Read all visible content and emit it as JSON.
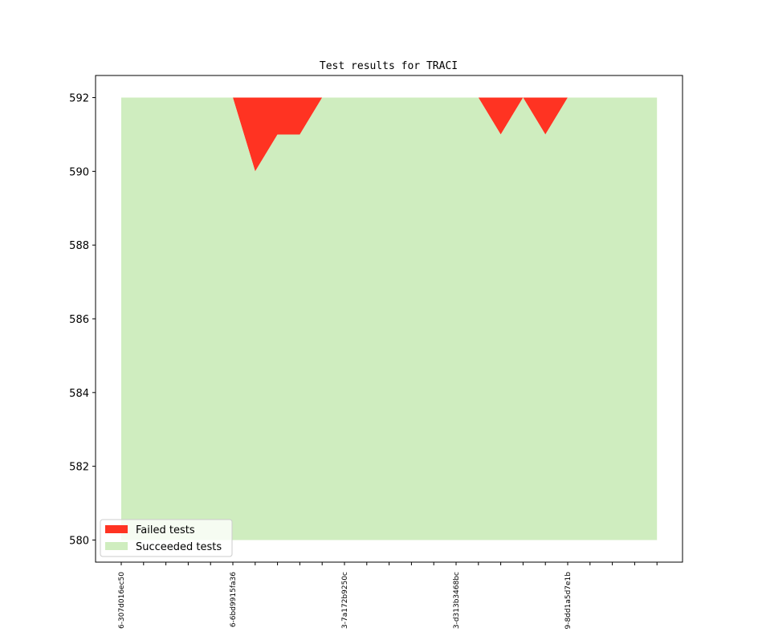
{
  "chart_data": {
    "type": "area",
    "title": "Test results for TRACI",
    "xlabel": "",
    "ylabel": "",
    "ylim": [
      579.4,
      592.6
    ],
    "yticks": [
      580,
      582,
      584,
      586,
      588,
      590,
      592
    ],
    "x_count": 25,
    "x_tick_labels": [
      {
        "index": 0,
        "label": "6-307d016ec50"
      },
      {
        "index": 5,
        "label": "6-6bd9915fa36"
      },
      {
        "index": 10,
        "label": "3-7a172b9250c"
      },
      {
        "index": 15,
        "label": "3-d313b3468bc"
      },
      {
        "index": 20,
        "label": "9-8dd1a5d7e1b"
      }
    ],
    "baseline": 580,
    "series": [
      {
        "name": "Failed tests",
        "color": "#ff3322",
        "values": [
          592,
          592,
          592,
          592,
          592,
          592,
          590,
          591,
          591,
          592,
          592,
          592,
          592,
          592,
          592,
          592,
          592,
          591,
          592,
          591,
          592,
          592,
          592,
          592,
          592
        ]
      },
      {
        "name": "Succeeded tests",
        "color": "#cfedbf",
        "values": [
          592,
          592,
          592,
          592,
          592,
          592,
          590,
          591,
          591,
          592,
          592,
          592,
          592,
          592,
          592,
          592,
          592,
          591,
          592,
          591,
          592,
          592,
          592,
          592,
          592
        ]
      }
    ],
    "total": 592,
    "legend": "lower-left",
    "grid": false
  }
}
